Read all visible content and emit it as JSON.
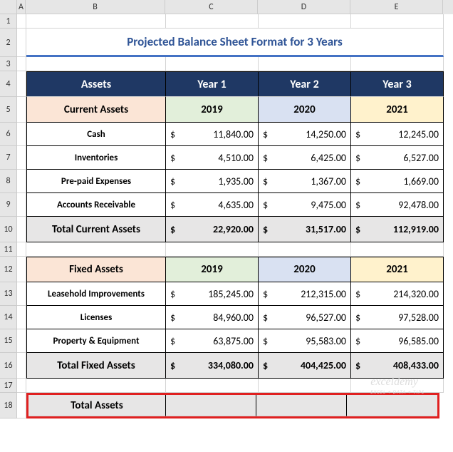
{
  "columns": [
    "A",
    "B",
    "C",
    "D",
    "E"
  ],
  "rows": [
    "1",
    "2",
    "3",
    "4",
    "5",
    "6",
    "7",
    "8",
    "9",
    "10",
    "11",
    "12",
    "13",
    "14",
    "15",
    "16",
    "17",
    "18"
  ],
  "title": "Projected Balance Sheet Format for 3 Years",
  "title_color": "#2f5496",
  "underline_color": "#4472c4",
  "header": {
    "assets": "Assets",
    "y1": "Year 1",
    "y2": "Year 2",
    "y3": "Year 3"
  },
  "header_bg": "#1f3864",
  "header_fg": "#ffffff",
  "year_cells": {
    "y2019": "2019",
    "y2020": "2020",
    "y2021": "2021"
  },
  "colors": {
    "peach": "#fbe5d6",
    "lt_green": "#e2efda",
    "lt_blue": "#d9e1f2",
    "lt_yellow": "#fff2cc",
    "gray_total": "#e7e6e6",
    "gridline": "#d4d4d4",
    "border": "#000000",
    "red": "#e02020",
    "row_header_bg": "#e6e6e6"
  },
  "section1": {
    "title": "Current Assets",
    "rows": [
      {
        "label": "Cash",
        "v": [
          "11,840.00",
          "14,250.00",
          "12,245.00"
        ]
      },
      {
        "label": "Inventories",
        "v": [
          "4,510.00",
          "6,425.00",
          "6,527.00"
        ]
      },
      {
        "label": "Pre-paid Expenses",
        "v": [
          "1,935.00",
          "1,367.00",
          "1,669.00"
        ]
      },
      {
        "label": "Accounts Receivable",
        "v": [
          "4,635.00",
          "9,475.00",
          "92,478.00"
        ]
      }
    ],
    "total": {
      "label": "Total Current Assets",
      "v": [
        "22,920.00",
        "31,517.00",
        "112,919.00"
      ]
    }
  },
  "section2": {
    "title": "Fixed Assets",
    "rows": [
      {
        "label": "Leasehold Improvements",
        "v": [
          "185,245.00",
          "212,315.00",
          "214,320.00"
        ]
      },
      {
        "label": "Licenses",
        "v": [
          "84,960.00",
          "96,527.00",
          "97,528.00"
        ]
      },
      {
        "label": "Property & Equipment",
        "v": [
          "63,875.00",
          "95,583.00",
          "96,585.00"
        ]
      }
    ],
    "total": {
      "label": "Total Fixed Assets",
      "v": [
        "334,080.00",
        "404,425.00",
        "408,433.00"
      ]
    }
  },
  "total_assets": "Total Assets",
  "watermark": "exceldemy",
  "watermark_sub": "EXCEL + DATA + TIPS",
  "heights": {
    "r1": 20,
    "r2": 40,
    "r3": 20,
    "r4": 36,
    "r5": 36,
    "r6": 33,
    "r7": 33,
    "r8": 33,
    "r9": 33,
    "r10": 36,
    "r11": 20,
    "r12": 36,
    "r13": 33,
    "r14": 33,
    "r15": 33,
    "r16": 36,
    "r17": 20,
    "r18": 36
  },
  "currency": "$"
}
